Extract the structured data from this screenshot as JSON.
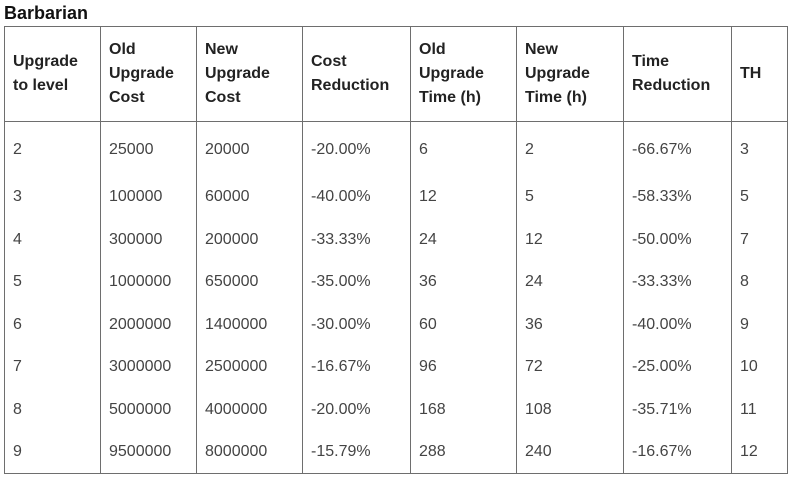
{
  "title": "Barbarian",
  "table": {
    "headers": [
      "Upgrade to level",
      "Old Upgrade Cost",
      "New Upgrade Cost",
      "Cost Reduction",
      "Old Upgrade Time (h)",
      "New Upgrade Time (h)",
      "Time Reduction",
      "TH"
    ],
    "rows": [
      [
        "2",
        "25000",
        "20000",
        "-20.00%",
        "6",
        "2",
        "-66.67%",
        "3"
      ],
      [
        "3",
        "100000",
        "60000",
        "-40.00%",
        "12",
        "5",
        "-58.33%",
        "5"
      ],
      [
        "4",
        "300000",
        "200000",
        "-33.33%",
        "24",
        "12",
        "-50.00%",
        "7"
      ],
      [
        "5",
        "1000000",
        "650000",
        "-35.00%",
        "36",
        "24",
        "-33.33%",
        "8"
      ],
      [
        "6",
        "2000000",
        "1400000",
        "-30.00%",
        "60",
        "36",
        "-40.00%",
        "9"
      ],
      [
        "7",
        "3000000",
        "2500000",
        "-16.67%",
        "96",
        "72",
        "-25.00%",
        "10"
      ],
      [
        "8",
        "5000000",
        "4000000",
        "-20.00%",
        "168",
        "108",
        "-35.71%",
        "11"
      ],
      [
        "9",
        "9500000",
        "8000000",
        "-15.79%",
        "288",
        "240",
        "-16.67%",
        "12"
      ]
    ]
  }
}
